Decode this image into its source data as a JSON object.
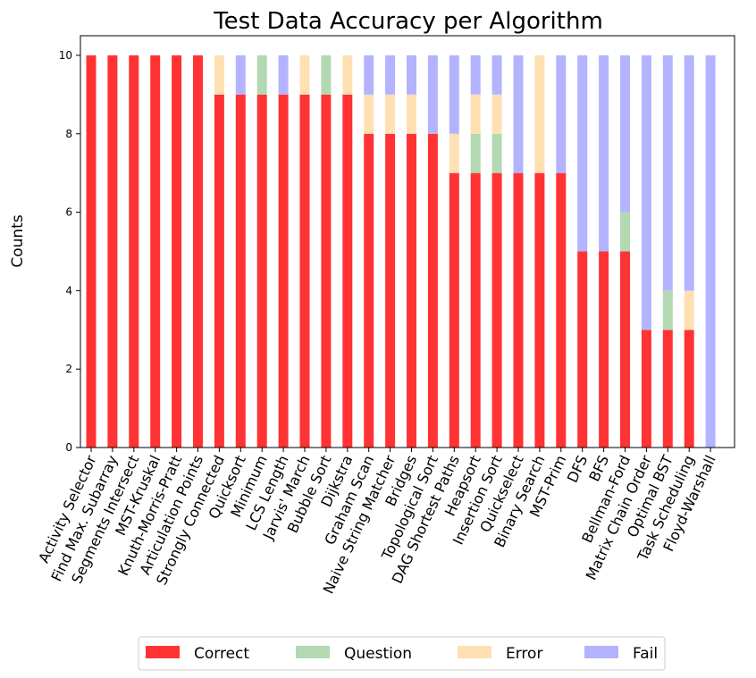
{
  "chart_data": {
    "type": "bar",
    "stacked": true,
    "title": "Test Data Accuracy per Algorithm",
    "ylabel": "Counts",
    "ylim": [
      0,
      10.5
    ],
    "yticks": [
      0,
      2,
      4,
      6,
      8,
      10
    ],
    "grid": false,
    "legend": {
      "placement": "bottom-center",
      "columns": 4
    },
    "categories": [
      "Activity Selector",
      "Find Max. Subarray",
      "Segments Intersect",
      "MST-Kruskal",
      "Knuth-Morris-Pratt",
      "Articulation Points",
      "Strongly Connected",
      "Quicksort",
      "Minimum",
      "LCS Length",
      "Jarvis' March",
      "Bubble Sort",
      "Dijkstra",
      "Graham Scan",
      "Naive String Matcher",
      "Bridges",
      "Topological Sort",
      "DAG Shortest Paths",
      "Heapsort",
      "Insertion Sort",
      "Quickselect",
      "Binary Search",
      "MST-Prim",
      "DFS",
      "BFS",
      "Bellman-Ford",
      "Matrix Chain Order",
      "Optimal BST",
      "Task Scheduling",
      "Floyd-Warshall"
    ],
    "series": [
      {
        "name": "Correct",
        "color": "#ff3333",
        "values": [
          10,
          10,
          10,
          10,
          10,
          10,
          9,
          9,
          9,
          9,
          9,
          9,
          9,
          8,
          8,
          8,
          8,
          7,
          7,
          7,
          7,
          7,
          7,
          5,
          5,
          5,
          3,
          3,
          3,
          0
        ]
      },
      {
        "name": "Question",
        "color": "#b3d9b3",
        "values": [
          0,
          0,
          0,
          0,
          0,
          0,
          0,
          0,
          1,
          0,
          0,
          1,
          0,
          0,
          0,
          0,
          0,
          0,
          1,
          1,
          0,
          0,
          0,
          0,
          0,
          1,
          0,
          1,
          0,
          0
        ]
      },
      {
        "name": "Error",
        "color": "#ffe0b3",
        "values": [
          0,
          0,
          0,
          0,
          0,
          0,
          1,
          0,
          0,
          0,
          1,
          0,
          1,
          1,
          1,
          1,
          0,
          1,
          1,
          1,
          0,
          3,
          0,
          0,
          0,
          0,
          0,
          0,
          1,
          0
        ]
      },
      {
        "name": "Fail",
        "color": "#b3b3ff",
        "values": [
          0,
          0,
          0,
          0,
          0,
          0,
          0,
          1,
          0,
          1,
          0,
          0,
          0,
          1,
          1,
          1,
          2,
          2,
          1,
          1,
          3,
          0,
          3,
          5,
          5,
          4,
          7,
          6,
          6,
          10
        ]
      }
    ]
  }
}
